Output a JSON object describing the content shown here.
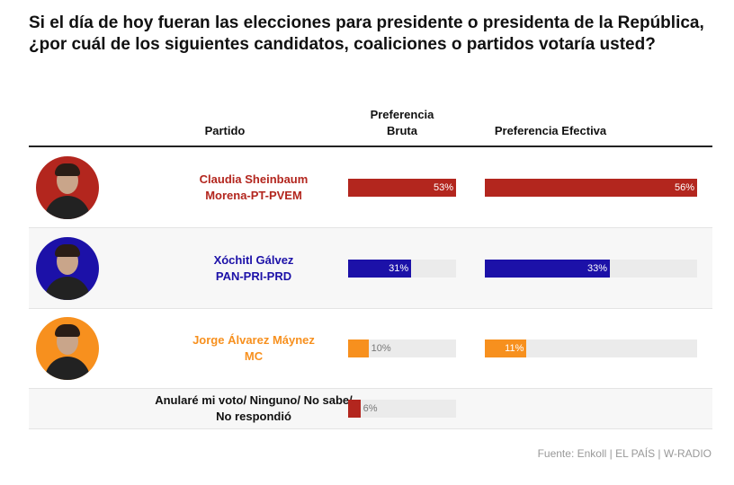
{
  "chart_data": {
    "type": "bar",
    "title": "Si el día de hoy fueran las elecciones para presidente o presidenta de la República, ¿por cuál de los siguientes candidatos, coaliciones o partidos votaría usted?",
    "category_header": "Partido",
    "categories": [
      "Claudia Sheinbaum",
      "Xóchitl Gálvez",
      "Jorge Álvarez Máynez",
      "Anularé mi voto/ Ninguno/ No sabe/ No respondió"
    ],
    "subcategories": [
      "Morena-PT-PVEM",
      "PAN-PRI-PRD",
      "MC",
      null
    ],
    "colors": [
      "#b3261e",
      "#1c11a8",
      "#f7901e",
      "#b3261e"
    ],
    "series": [
      {
        "name": "Preferencia Bruta",
        "values": [
          53,
          31,
          10,
          6
        ],
        "value_labels": [
          "53%",
          "31%",
          "10%",
          "6%"
        ],
        "xlim": [
          0,
          53
        ]
      },
      {
        "name": "Preferencia Efectiva",
        "values": [
          56,
          33,
          11,
          null
        ],
        "value_labels": [
          "56%",
          "33%",
          "11%",
          null
        ],
        "xlim": [
          0,
          56
        ]
      }
    ],
    "source": "Fuente: Enkoll | EL PAÍS | W-RADIO"
  }
}
